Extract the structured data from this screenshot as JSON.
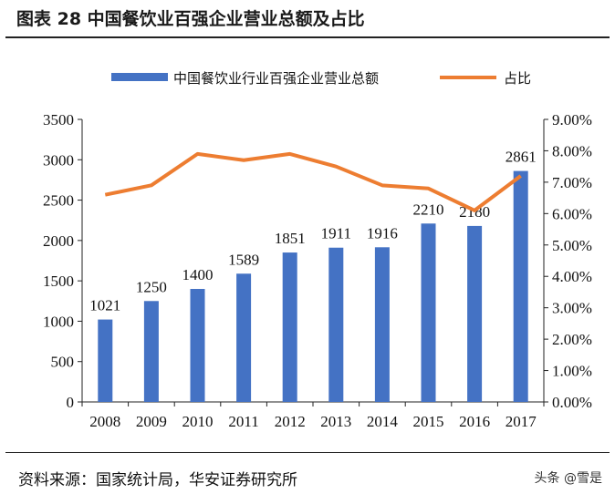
{
  "title": "图表 28 中国餐饮业百强企业营业总额及占比",
  "source": "资料来源：国家统计局，华安证券研究所",
  "watermark": "头条 @雪是",
  "chart_data": {
    "type": "bar+line",
    "categories": [
      "2008",
      "2009",
      "2010",
      "2011",
      "2012",
      "2013",
      "2014",
      "2015",
      "2016",
      "2017"
    ],
    "series": [
      {
        "name": "中国餐饮业行业百强企业营业总额",
        "type": "bar",
        "axis": "left",
        "color": "#4472C4",
        "values": [
          1021,
          1250,
          1400,
          1589,
          1851,
          1911,
          1916,
          2210,
          2180,
          2861
        ]
      },
      {
        "name": "占比",
        "type": "line",
        "axis": "right",
        "color": "#ED7D31",
        "values": [
          6.6,
          6.9,
          7.9,
          7.7,
          7.9,
          7.5,
          6.9,
          6.8,
          6.1,
          7.2
        ]
      }
    ],
    "left_axis": {
      "min": 0,
      "max": 3500,
      "ticks": [
        "0",
        "500",
        "1000",
        "1500",
        "2000",
        "2500",
        "3000",
        "3500"
      ]
    },
    "right_axis": {
      "min": 0,
      "max": 9,
      "ticks": [
        "0.00%",
        "1.00%",
        "2.00%",
        "3.00%",
        "4.00%",
        "5.00%",
        "6.00%",
        "7.00%",
        "8.00%",
        "9.00%"
      ]
    },
    "legend": "top",
    "grid": false
  }
}
